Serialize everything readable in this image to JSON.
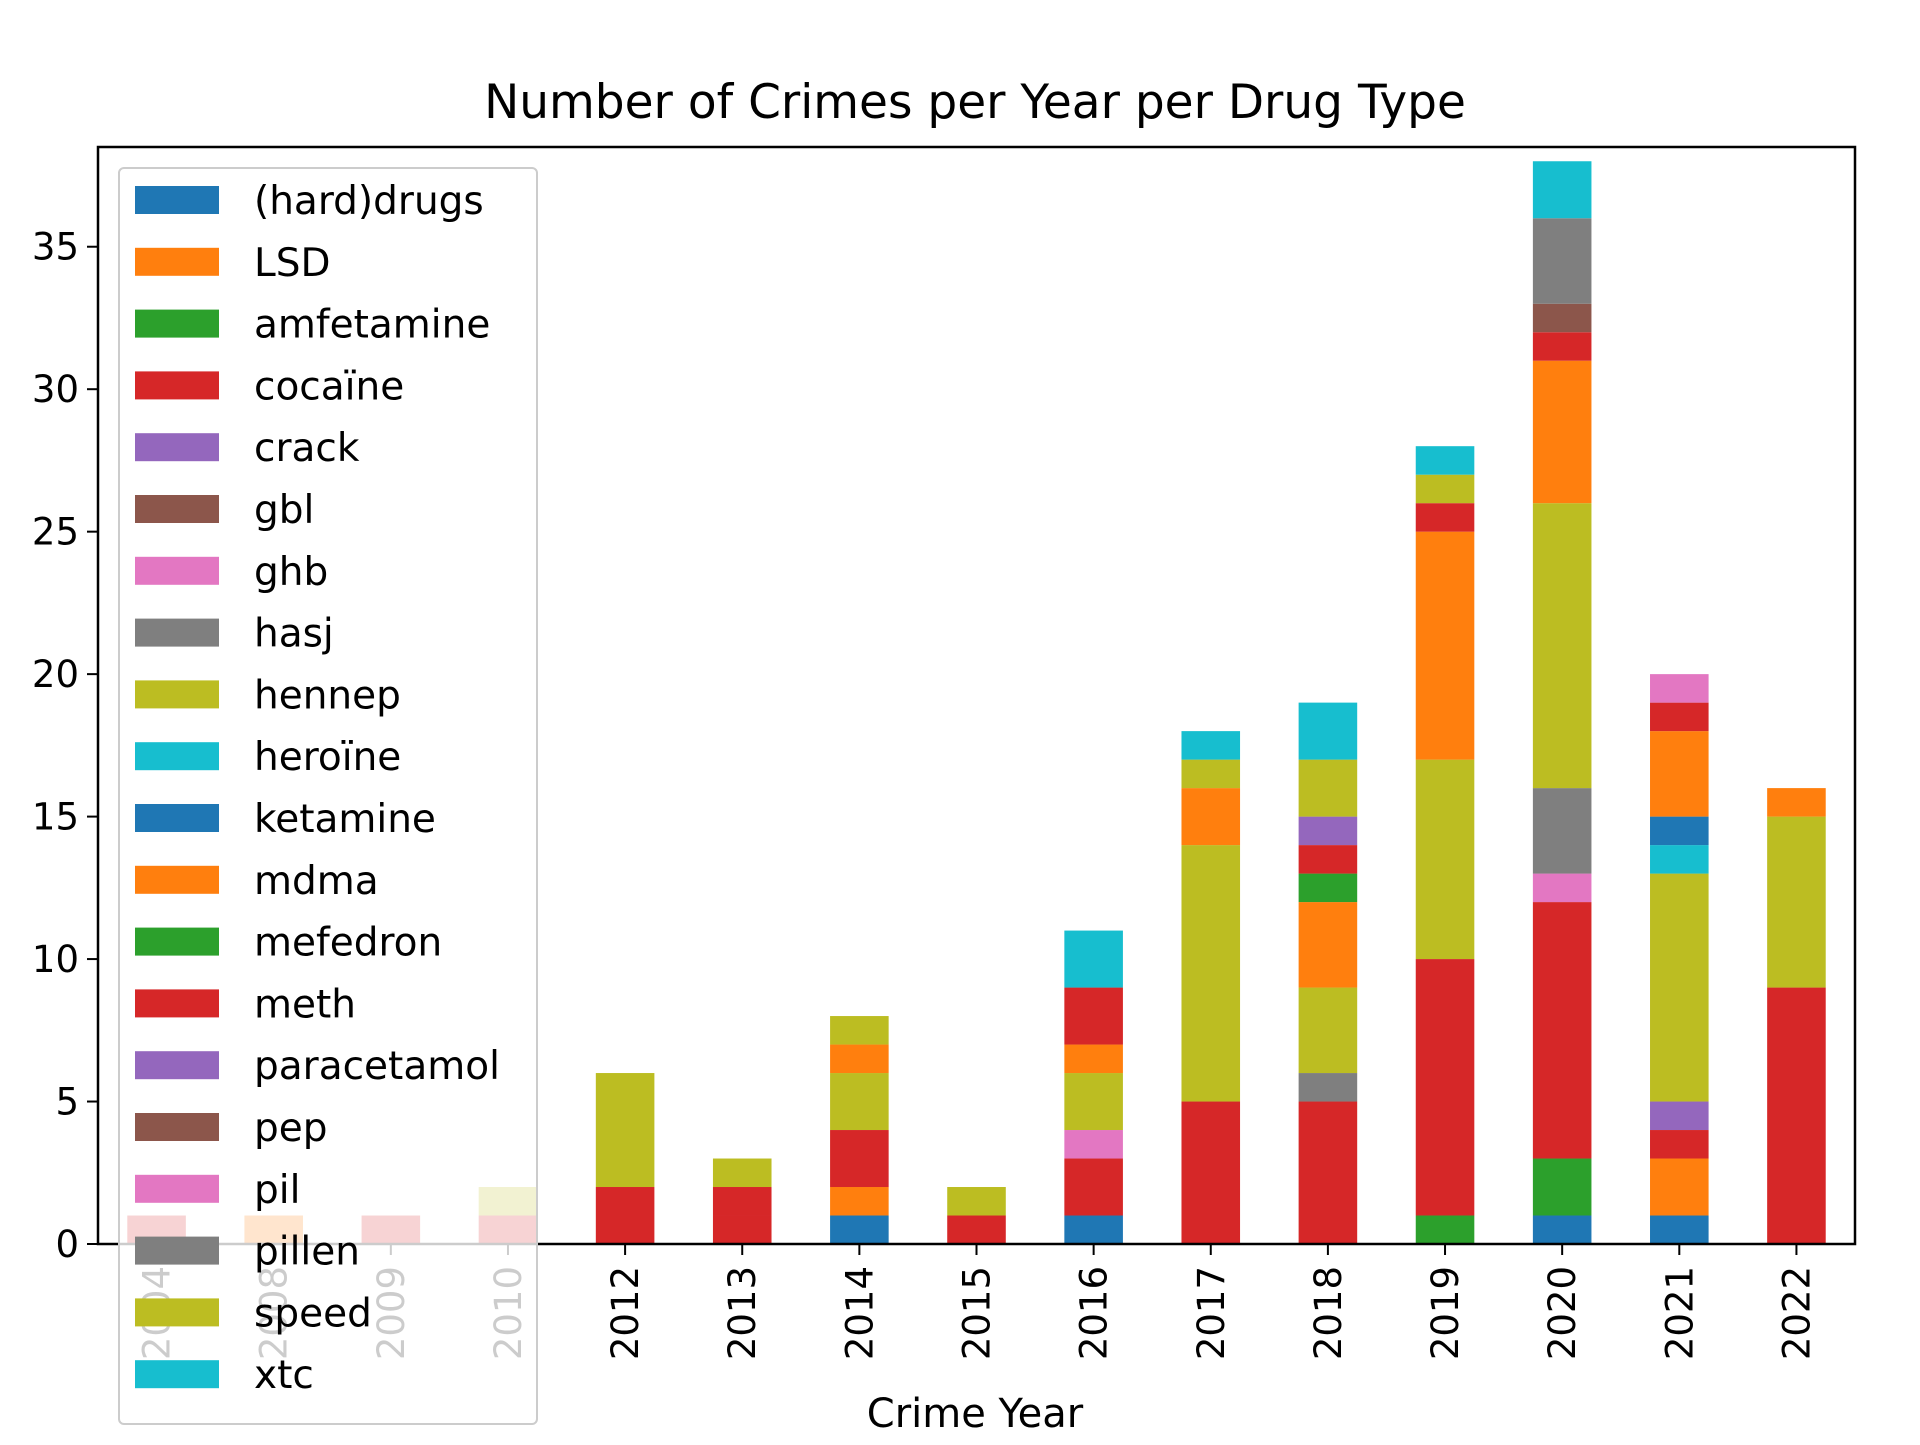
{
  "chart_data": {
    "type": "bar",
    "stacked": true,
    "title": "Number of Crimes per Year per Drug Type",
    "xlabel": "Crime Year",
    "ylabel": "",
    "ylim": [
      0,
      38.5
    ],
    "yticks": [
      0,
      5,
      10,
      15,
      20,
      25,
      30,
      35
    ],
    "grid": false,
    "legend_position": "upper-left",
    "categories": [
      "2004",
      "2008",
      "2009",
      "2010",
      "2012",
      "2013",
      "2014",
      "2015",
      "2016",
      "2017",
      "2018",
      "2019",
      "2020",
      "2021",
      "2022"
    ],
    "series": [
      {
        "name": "(hard)drugs",
        "color": "#1f77b4",
        "values": [
          0,
          0,
          0,
          0,
          0,
          0,
          0,
          0,
          0,
          0,
          0,
          0,
          0,
          0,
          0
        ]
      },
      {
        "name": "LSD",
        "color": "#ff7f0e",
        "values": [
          0,
          1,
          0,
          0,
          0,
          0,
          0,
          0,
          0,
          0,
          0,
          0,
          0,
          0,
          0
        ]
      },
      {
        "name": "amfetamine",
        "color": "#2ca02c",
        "values": [
          0,
          0,
          0,
          0,
          0,
          0,
          0,
          0,
          0,
          0,
          0,
          0,
          0,
          0,
          0
        ]
      },
      {
        "name": "cocaïne",
        "color": "#d62728",
        "values": [
          1,
          0,
          1,
          1,
          2,
          1,
          0,
          1,
          0,
          5,
          5,
          0,
          0,
          0,
          0
        ]
      },
      {
        "name": "crack",
        "color": "#9467bd",
        "values": [
          0,
          0,
          0,
          0,
          0,
          0,
          0,
          0,
          0,
          0,
          0,
          0,
          0,
          0,
          0
        ]
      },
      {
        "name": "gbl",
        "color": "#8c564b",
        "values": [
          0,
          0,
          0,
          0,
          0,
          0,
          0,
          0,
          0,
          0,
          0,
          0,
          0,
          0,
          0
        ]
      },
      {
        "name": "ghb",
        "color": "#e377c2",
        "values": [
          0,
          0,
          0,
          0,
          0,
          0,
          0,
          0,
          0,
          0,
          0,
          0,
          0,
          0,
          0
        ]
      },
      {
        "name": "hasj",
        "color": "#7f7f7f",
        "values": [
          0,
          0,
          0,
          0,
          0,
          0,
          0,
          0,
          0,
          0,
          1,
          0,
          0,
          0,
          0
        ]
      },
      {
        "name": "hennep",
        "color": "#bcbd22",
        "values": [
          0,
          0,
          0,
          1,
          4,
          0,
          0,
          0,
          0,
          9,
          0,
          0,
          0,
          0,
          0
        ]
      },
      {
        "name": "heroïne",
        "color": "#17becf",
        "values": [
          0,
          0,
          0,
          0,
          0,
          0,
          0,
          0,
          0,
          0,
          0,
          0,
          0,
          0,
          0
        ]
      },
      {
        "name": "ketamine",
        "color": "#1f77b4",
        "values": [
          0,
          0,
          0,
          0,
          0,
          0,
          1,
          0,
          1,
          0,
          0,
          0,
          1,
          1,
          0
        ]
      },
      {
        "name": "mdma",
        "color": "#ff7f0e",
        "values": [
          0,
          0,
          0,
          0,
          0,
          0,
          1,
          0,
          0,
          0,
          0,
          0,
          0,
          2,
          0
        ]
      },
      {
        "name": "mefedron",
        "color": "#2ca02c",
        "values": [
          0,
          0,
          0,
          0,
          0,
          0,
          0,
          0,
          0,
          0,
          0,
          1,
          2,
          0,
          0
        ]
      },
      {
        "name": "meth",
        "color": "#d62728",
        "values": [
          0,
          0,
          0,
          0,
          0,
          1,
          2,
          0,
          2,
          0,
          0,
          9,
          9,
          1,
          9
        ]
      },
      {
        "name": "paracetamol",
        "color": "#9467bd",
        "values": [
          0,
          0,
          0,
          0,
          0,
          0,
          0,
          0,
          0,
          0,
          0,
          0,
          0,
          1,
          0
        ]
      },
      {
        "name": "pep",
        "color": "#8c564b",
        "values": [
          0,
          0,
          0,
          0,
          0,
          0,
          0,
          0,
          0,
          0,
          0,
          0,
          0,
          0,
          0
        ]
      },
      {
        "name": "pil",
        "color": "#e377c2",
        "values": [
          0,
          0,
          0,
          0,
          0,
          0,
          0,
          0,
          1,
          0,
          0,
          0,
          1,
          0,
          0
        ]
      },
      {
        "name": "pillen",
        "color": "#7f7f7f",
        "values": [
          0,
          0,
          0,
          0,
          0,
          0,
          0,
          0,
          0,
          0,
          0,
          0,
          3,
          0,
          0
        ]
      },
      {
        "name": "speed",
        "color": "#bcbd22",
        "values": [
          0,
          0,
          0,
          0,
          0,
          1,
          2,
          1,
          2,
          0,
          3,
          7,
          10,
          8,
          6
        ]
      },
      {
        "name": "xtc",
        "color": "#17becf",
        "values": [
          0,
          0,
          0,
          0,
          0,
          0,
          0,
          0,
          0,
          0,
          0,
          0,
          0,
          1,
          0
        ]
      },
      {
        "name": "(hard)drugs",
        "color": "#1f77b4",
        "values": [
          0,
          0,
          0,
          0,
          0,
          0,
          0,
          0,
          0,
          0,
          0,
          0,
          0,
          1,
          0
        ],
        "legend": false
      },
      {
        "name": "LSD",
        "color": "#ff7f0e",
        "values": [
          0,
          0,
          0,
          0,
          0,
          0,
          1,
          0,
          1,
          2,
          3,
          8,
          5,
          3,
          1
        ],
        "legend": false
      },
      {
        "name": "amfetamine",
        "color": "#2ca02c",
        "values": [
          0,
          0,
          0,
          0,
          0,
          0,
          0,
          0,
          0,
          0,
          1,
          0,
          0,
          0,
          0
        ],
        "legend": false
      },
      {
        "name": "cocaïne",
        "color": "#d62728",
        "values": [
          0,
          0,
          0,
          0,
          0,
          0,
          0,
          0,
          2,
          0,
          1,
          1,
          1,
          1,
          0
        ],
        "legend": false
      },
      {
        "name": "crack",
        "color": "#9467bd",
        "values": [
          0,
          0,
          0,
          0,
          0,
          0,
          0,
          0,
          0,
          0,
          1,
          0,
          0,
          0,
          0
        ],
        "legend": false
      },
      {
        "name": "gbl",
        "color": "#8c564b",
        "values": [
          0,
          0,
          0,
          0,
          0,
          0,
          0,
          0,
          0,
          0,
          0,
          0,
          1,
          0,
          0
        ],
        "legend": false
      },
      {
        "name": "ghb",
        "color": "#e377c2",
        "values": [
          0,
          0,
          0,
          0,
          0,
          0,
          0,
          0,
          0,
          0,
          0,
          0,
          0,
          1,
          0
        ],
        "legend": false
      },
      {
        "name": "hasj",
        "color": "#7f7f7f",
        "values": [
          0,
          0,
          0,
          0,
          0,
          0,
          0,
          0,
          0,
          0,
          0,
          0,
          3,
          0,
          0
        ],
        "legend": false
      },
      {
        "name": "hennep",
        "color": "#bcbd22",
        "values": [
          0,
          0,
          0,
          0,
          0,
          0,
          1,
          0,
          0,
          1,
          2,
          1,
          0,
          0,
          0
        ],
        "legend": false
      },
      {
        "name": "heroïne",
        "color": "#17becf",
        "values": [
          0,
          0,
          0,
          0,
          0,
          0,
          0,
          0,
          2,
          1,
          2,
          1,
          2,
          0,
          0
        ],
        "legend": false
      }
    ],
    "legend_entries": [
      {
        "name": "(hard)drugs",
        "color": "#1f77b4"
      },
      {
        "name": "LSD",
        "color": "#ff7f0e"
      },
      {
        "name": "amfetamine",
        "color": "#2ca02c"
      },
      {
        "name": "cocaïne",
        "color": "#d62728"
      },
      {
        "name": "crack",
        "color": "#9467bd"
      },
      {
        "name": "gbl",
        "color": "#8c564b"
      },
      {
        "name": "ghb",
        "color": "#e377c2"
      },
      {
        "name": "hasj",
        "color": "#7f7f7f"
      },
      {
        "name": "hennep",
        "color": "#bcbd22"
      },
      {
        "name": "heroïne",
        "color": "#17becf"
      },
      {
        "name": "ketamine",
        "color": "#1f77b4"
      },
      {
        "name": "mdma",
        "color": "#ff7f0e"
      },
      {
        "name": "mefedron",
        "color": "#2ca02c"
      },
      {
        "name": "meth",
        "color": "#d62728"
      },
      {
        "name": "paracetamol",
        "color": "#9467bd"
      },
      {
        "name": "pep",
        "color": "#8c564b"
      },
      {
        "name": "pil",
        "color": "#e377c2"
      },
      {
        "name": "pillen",
        "color": "#7f7f7f"
      },
      {
        "name": "speed",
        "color": "#bcbd22"
      },
      {
        "name": "xtc",
        "color": "#17becf"
      }
    ]
  }
}
